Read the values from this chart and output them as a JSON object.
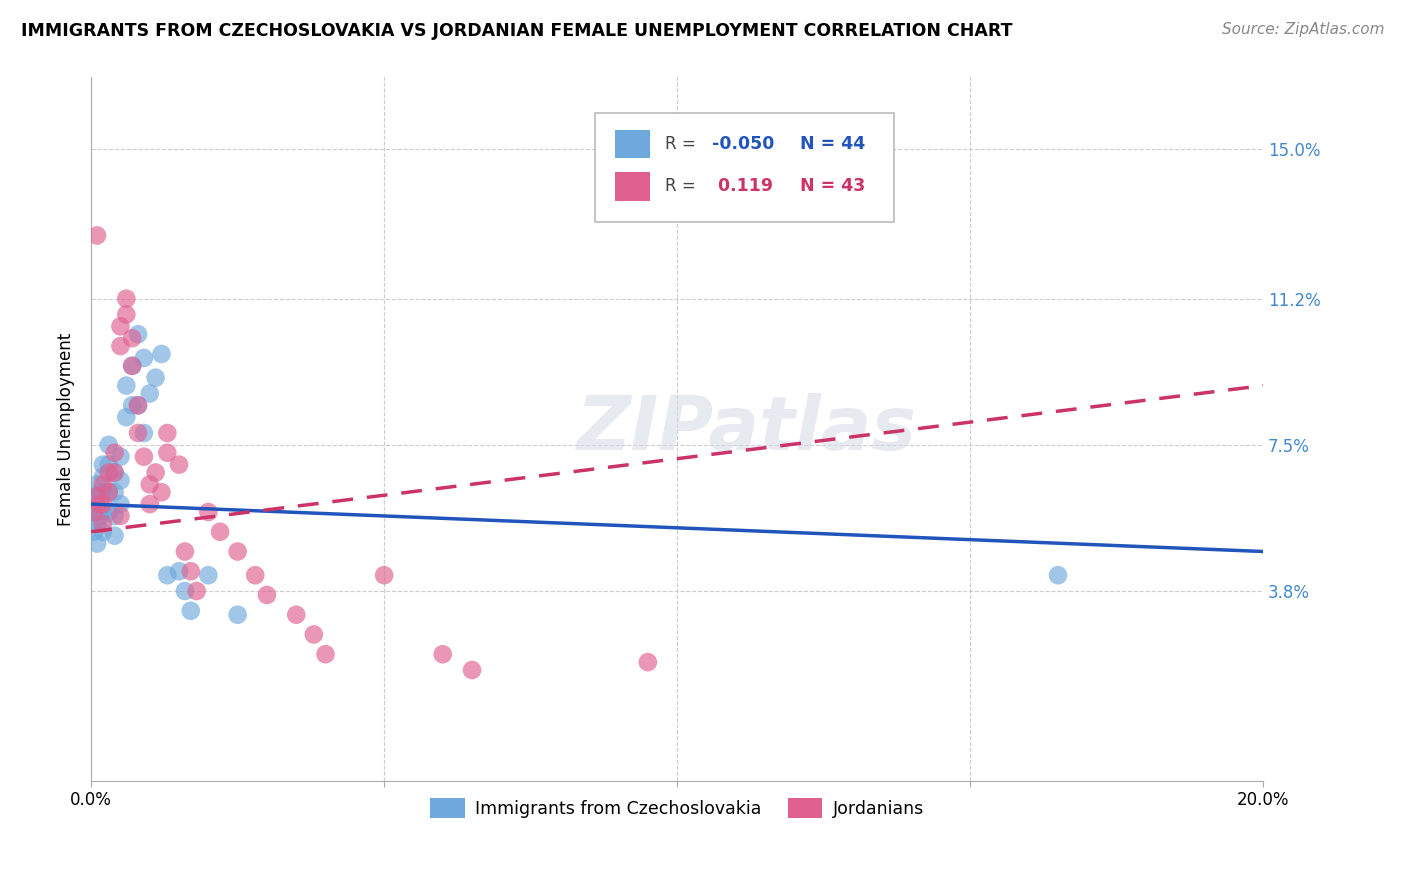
{
  "title": "IMMIGRANTS FROM CZECHOSLOVAKIA VS JORDANIAN FEMALE UNEMPLOYMENT CORRELATION CHART",
  "source": "Source: ZipAtlas.com",
  "ylabel": "Female Unemployment",
  "ytick_labels": [
    "15.0%",
    "11.2%",
    "7.5%",
    "3.8%"
  ],
  "ytick_values": [
    0.15,
    0.112,
    0.075,
    0.038
  ],
  "xmin": 0.0,
  "xmax": 0.2,
  "ymin": -0.01,
  "ymax": 0.168,
  "color_blue": "#6fa8dc",
  "color_pink": "#e06090",
  "watermark": "ZIPatlas",
  "blue_R": "-0.050",
  "blue_N": "44",
  "pink_R": "0.119",
  "pink_N": "43",
  "blue_line_x": [
    0.0,
    0.2
  ],
  "blue_line_y": [
    0.06,
    0.048
  ],
  "pink_line_x": [
    0.0,
    0.2
  ],
  "pink_line_y": [
    0.053,
    0.09
  ],
  "blue_scatter_x": [
    0.0005,
    0.0005,
    0.0008,
    0.001,
    0.001,
    0.001,
    0.001,
    0.001,
    0.0015,
    0.0015,
    0.002,
    0.002,
    0.002,
    0.002,
    0.002,
    0.003,
    0.003,
    0.003,
    0.003,
    0.004,
    0.004,
    0.004,
    0.004,
    0.005,
    0.005,
    0.005,
    0.006,
    0.006,
    0.007,
    0.007,
    0.008,
    0.008,
    0.009,
    0.009,
    0.01,
    0.011,
    0.012,
    0.013,
    0.015,
    0.016,
    0.017,
    0.02,
    0.025,
    0.165
  ],
  "blue_scatter_y": [
    0.058,
    0.053,
    0.06,
    0.065,
    0.062,
    0.058,
    0.055,
    0.05,
    0.063,
    0.057,
    0.07,
    0.067,
    0.063,
    0.058,
    0.053,
    0.075,
    0.07,
    0.063,
    0.058,
    0.068,
    0.063,
    0.057,
    0.052,
    0.072,
    0.066,
    0.06,
    0.09,
    0.082,
    0.095,
    0.085,
    0.103,
    0.085,
    0.097,
    0.078,
    0.088,
    0.092,
    0.098,
    0.042,
    0.043,
    0.038,
    0.033,
    0.042,
    0.032,
    0.042
  ],
  "pink_scatter_x": [
    0.0005,
    0.001,
    0.001,
    0.0015,
    0.002,
    0.002,
    0.002,
    0.003,
    0.003,
    0.004,
    0.004,
    0.005,
    0.005,
    0.005,
    0.006,
    0.006,
    0.007,
    0.007,
    0.008,
    0.008,
    0.009,
    0.01,
    0.01,
    0.011,
    0.012,
    0.013,
    0.013,
    0.015,
    0.016,
    0.017,
    0.018,
    0.02,
    0.022,
    0.025,
    0.028,
    0.03,
    0.035,
    0.038,
    0.04,
    0.05,
    0.06,
    0.065,
    0.095
  ],
  "pink_scatter_y": [
    0.058,
    0.062,
    0.128,
    0.06,
    0.065,
    0.06,
    0.055,
    0.068,
    0.063,
    0.073,
    0.068,
    0.105,
    0.1,
    0.057,
    0.112,
    0.108,
    0.102,
    0.095,
    0.085,
    0.078,
    0.072,
    0.065,
    0.06,
    0.068,
    0.063,
    0.078,
    0.073,
    0.07,
    0.048,
    0.043,
    0.038,
    0.058,
    0.053,
    0.048,
    0.042,
    0.037,
    0.032,
    0.027,
    0.022,
    0.042,
    0.022,
    0.018,
    0.02
  ]
}
